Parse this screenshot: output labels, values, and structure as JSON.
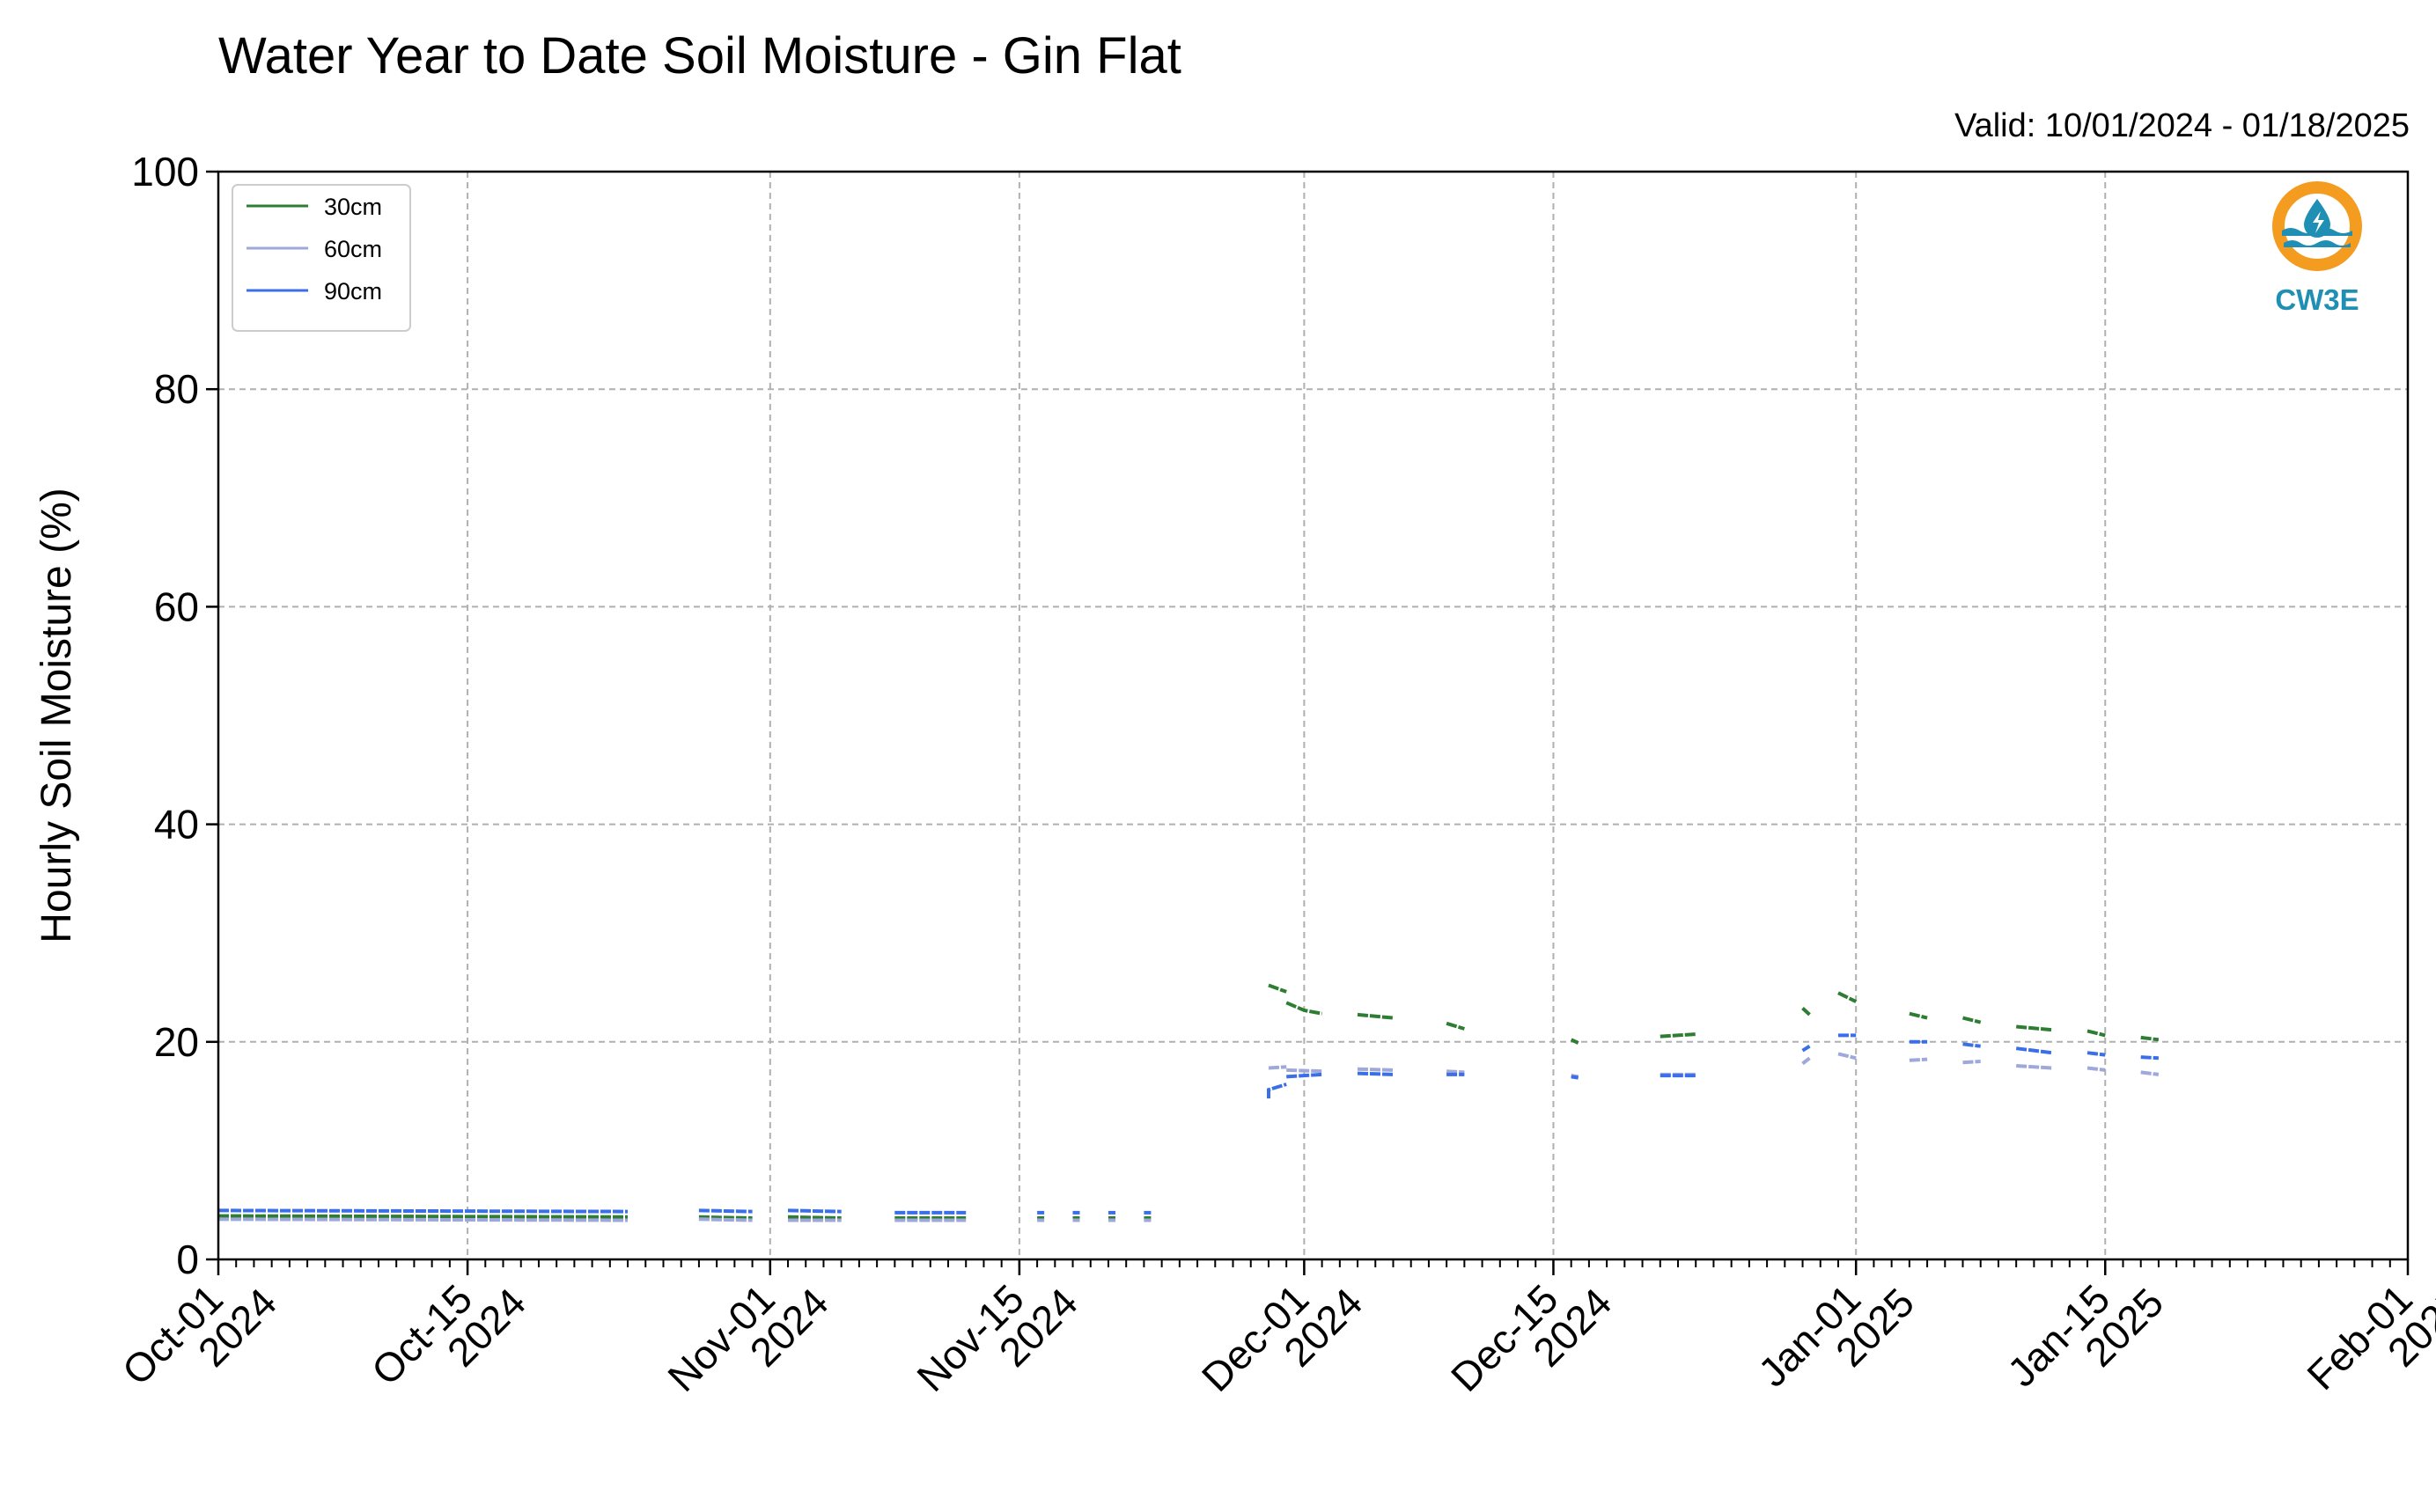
{
  "title": "Water Year to Date Soil Moisture - Gin Flat",
  "subtitle": "Valid: 10/01/2024 - 01/18/2025",
  "logo": {
    "text": "CW3E",
    "icon": "cw3e-water-drop-logo",
    "ring_color": "#f39c1f",
    "wave_color": "#1f8fb3"
  },
  "chart_data": {
    "type": "line",
    "title": "Water Year to Date Soil Moisture - Gin Flat",
    "ylabel": "Hourly Soil Moisture (%)",
    "xlabel": "",
    "xlim": [
      "2024-10-01",
      "2025-02-01"
    ],
    "ylim": [
      0,
      100
    ],
    "yticks": [
      0,
      20,
      40,
      60,
      80,
      100
    ],
    "xticks": [
      {
        "date": "2024-10-01",
        "line1": "Oct-01",
        "line2": "2024"
      },
      {
        "date": "2024-10-15",
        "line1": "Oct-15",
        "line2": "2024"
      },
      {
        "date": "2024-11-01",
        "line1": "Nov-01",
        "line2": "2024"
      },
      {
        "date": "2024-11-15",
        "line1": "Nov-15",
        "line2": "2024"
      },
      {
        "date": "2024-12-01",
        "line1": "Dec-01",
        "line2": "2024"
      },
      {
        "date": "2024-12-15",
        "line1": "Dec-15",
        "line2": "2024"
      },
      {
        "date": "2025-01-01",
        "line1": "Jan-01",
        "line2": "2025"
      },
      {
        "date": "2025-01-15",
        "line1": "Jan-15",
        "line2": "2025"
      },
      {
        "date": "2025-02-01",
        "line1": "Feb-01",
        "line2": "2025"
      }
    ],
    "grid": true,
    "legend_position": "top-left",
    "series": [
      {
        "name": "30cm",
        "color": "#2e7d32",
        "segments": [
          [
            [
              "2024-10-01",
              4.0
            ],
            [
              "2024-10-24",
              3.9
            ]
          ],
          [
            [
              "2024-10-28",
              3.9
            ],
            [
              "2024-10-31",
              3.8
            ]
          ],
          [
            [
              "2024-11-02",
              3.9
            ],
            [
              "2024-11-05",
              3.8
            ]
          ],
          [
            [
              "2024-11-08",
              3.8
            ],
            [
              "2024-11-12",
              3.8
            ]
          ],
          [
            [
              "2024-11-16",
              3.8
            ],
            [
              "2024-11-16",
              3.8
            ]
          ],
          [
            [
              "2024-11-18",
              3.8
            ],
            [
              "2024-11-18",
              3.8
            ]
          ],
          [
            [
              "2024-11-20",
              3.8
            ],
            [
              "2024-11-20",
              3.8
            ]
          ],
          [
            [
              "2024-11-22",
              3.8
            ],
            [
              "2024-11-22",
              3.8
            ]
          ],
          [
            [
              "2024-11-29",
              25.2
            ],
            [
              "2024-11-30",
              24.6
            ]
          ],
          [
            [
              "2024-11-30",
              23.6
            ],
            [
              "2024-12-01",
              22.9
            ],
            [
              "2024-12-02",
              22.6
            ]
          ],
          [
            [
              "2024-12-04",
              22.5
            ],
            [
              "2024-12-06",
              22.2
            ]
          ],
          [
            [
              "2024-12-09",
              21.7
            ],
            [
              "2024-12-10",
              21.2
            ]
          ],
          [
            [
              "2024-12-16",
              20.2
            ],
            [
              "2024-12-16",
              19.9
            ]
          ],
          [
            [
              "2024-12-21",
              20.5
            ],
            [
              "2024-12-23",
              20.7
            ]
          ],
          [
            [
              "2024-12-29",
              23.1
            ],
            [
              "2024-12-29",
              22.5
            ]
          ],
          [
            [
              "2024-12-31",
              24.5
            ],
            [
              "2025-01-01",
              23.7
            ]
          ],
          [
            [
              "2025-01-04",
              22.6
            ],
            [
              "2025-01-05",
              22.2
            ]
          ],
          [
            [
              "2025-01-07",
              22.2
            ],
            [
              "2025-01-08",
              21.8
            ]
          ],
          [
            [
              "2025-01-10",
              21.4
            ],
            [
              "2025-01-12",
              21.1
            ]
          ],
          [
            [
              "2025-01-14",
              21.0
            ],
            [
              "2025-01-15",
              20.6
            ]
          ],
          [
            [
              "2025-01-17",
              20.4
            ],
            [
              "2025-01-18",
              20.2
            ]
          ]
        ]
      },
      {
        "name": "60cm",
        "color": "#9fa8da",
        "segments": [
          [
            [
              "2024-10-01",
              3.7
            ],
            [
              "2024-10-24",
              3.6
            ]
          ],
          [
            [
              "2024-10-28",
              3.7
            ],
            [
              "2024-10-31",
              3.6
            ]
          ],
          [
            [
              "2024-11-02",
              3.6
            ],
            [
              "2024-11-05",
              3.6
            ]
          ],
          [
            [
              "2024-11-08",
              3.6
            ],
            [
              "2024-11-12",
              3.6
            ]
          ],
          [
            [
              "2024-11-16",
              3.6
            ],
            [
              "2024-11-16",
              3.6
            ]
          ],
          [
            [
              "2024-11-18",
              3.6
            ],
            [
              "2024-11-18",
              3.6
            ]
          ],
          [
            [
              "2024-11-20",
              3.6
            ],
            [
              "2024-11-20",
              3.6
            ]
          ],
          [
            [
              "2024-11-22",
              3.6
            ],
            [
              "2024-11-22",
              3.6
            ]
          ],
          [
            [
              "2024-11-29",
              17.6
            ],
            [
              "2024-11-30",
              17.7
            ]
          ],
          [
            [
              "2024-11-30",
              17.4
            ],
            [
              "2024-12-02",
              17.3
            ]
          ],
          [
            [
              "2024-12-04",
              17.5
            ],
            [
              "2024-12-06",
              17.4
            ]
          ],
          [
            [
              "2024-12-09",
              17.3
            ],
            [
              "2024-12-10",
              17.2
            ]
          ],
          [
            [
              "2024-12-16",
              16.9
            ],
            [
              "2024-12-16",
              16.8
            ]
          ],
          [
            [
              "2024-12-21",
              17.0
            ],
            [
              "2024-12-23",
              17.0
            ]
          ],
          [
            [
              "2024-12-29",
              18.0
            ],
            [
              "2024-12-29",
              18.5
            ]
          ],
          [
            [
              "2024-12-31",
              18.9
            ],
            [
              "2025-01-01",
              18.5
            ]
          ],
          [
            [
              "2025-01-04",
              18.3
            ],
            [
              "2025-01-05",
              18.4
            ]
          ],
          [
            [
              "2025-01-07",
              18.1
            ],
            [
              "2025-01-08",
              18.2
            ]
          ],
          [
            [
              "2025-01-10",
              17.8
            ],
            [
              "2025-01-12",
              17.6
            ]
          ],
          [
            [
              "2025-01-14",
              17.6
            ],
            [
              "2025-01-15",
              17.4
            ]
          ],
          [
            [
              "2025-01-17",
              17.2
            ],
            [
              "2025-01-18",
              17.0
            ]
          ]
        ]
      },
      {
        "name": "90cm",
        "color": "#3a6fe8",
        "segments": [
          [
            [
              "2024-10-01",
              4.5
            ],
            [
              "2024-10-24",
              4.4
            ]
          ],
          [
            [
              "2024-10-28",
              4.5
            ],
            [
              "2024-10-31",
              4.4
            ]
          ],
          [
            [
              "2024-11-02",
              4.5
            ],
            [
              "2024-11-05",
              4.4
            ]
          ],
          [
            [
              "2024-11-08",
              4.3
            ],
            [
              "2024-11-12",
              4.3
            ]
          ],
          [
            [
              "2024-11-16",
              4.3
            ],
            [
              "2024-11-16",
              4.3
            ]
          ],
          [
            [
              "2024-11-18",
              4.3
            ],
            [
              "2024-11-18",
              4.3
            ]
          ],
          [
            [
              "2024-11-20",
              4.3
            ],
            [
              "2024-11-20",
              4.3
            ]
          ],
          [
            [
              "2024-11-22",
              4.3
            ],
            [
              "2024-11-22",
              4.3
            ]
          ],
          [
            [
              "2024-11-29",
              14.8
            ],
            [
              "2024-11-29",
              15.6
            ],
            [
              "2024-11-30",
              16.1
            ]
          ],
          [
            [
              "2024-11-30",
              16.8
            ],
            [
              "2024-12-02",
              17.0
            ]
          ],
          [
            [
              "2024-12-04",
              17.1
            ],
            [
              "2024-12-06",
              17.0
            ]
          ],
          [
            [
              "2024-12-09",
              17.0
            ],
            [
              "2024-12-10",
              17.0
            ]
          ],
          [
            [
              "2024-12-16",
              16.8
            ],
            [
              "2024-12-16",
              16.7
            ]
          ],
          [
            [
              "2024-12-21",
              16.9
            ],
            [
              "2024-12-23",
              16.9
            ]
          ],
          [
            [
              "2024-12-29",
              19.2
            ],
            [
              "2024-12-29",
              19.6
            ]
          ],
          [
            [
              "2024-12-31",
              20.6
            ],
            [
              "2025-01-01",
              20.6
            ]
          ],
          [
            [
              "2025-01-04",
              20.0
            ],
            [
              "2025-01-05",
              20.0
            ]
          ],
          [
            [
              "2025-01-07",
              19.8
            ],
            [
              "2025-01-08",
              19.6
            ]
          ],
          [
            [
              "2025-01-10",
              19.4
            ],
            [
              "2025-01-12",
              19.0
            ]
          ],
          [
            [
              "2025-01-14",
              19.0
            ],
            [
              "2025-01-15",
              18.8
            ]
          ],
          [
            [
              "2025-01-17",
              18.6
            ],
            [
              "2025-01-18",
              18.5
            ]
          ]
        ]
      }
    ]
  }
}
